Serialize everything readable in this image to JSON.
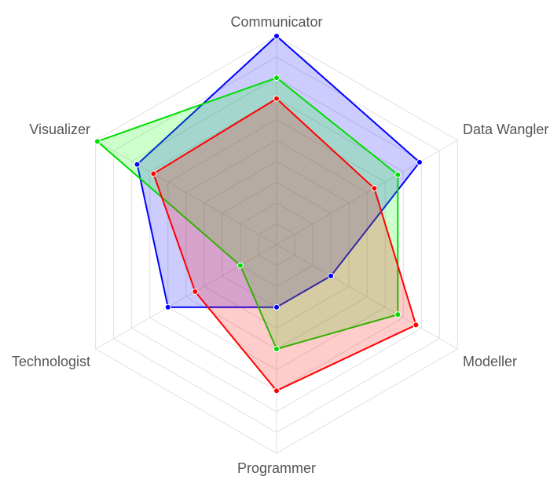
{
  "chart_data": {
    "type": "radar",
    "axes": [
      "Communicator",
      "Data Wangler",
      "Modeller",
      "Programmer",
      "Technologist",
      "Visualizer"
    ],
    "range": [
      0,
      10
    ],
    "grid_levels": 10,
    "grid": true,
    "legend": "none",
    "series": [
      {
        "color": "#0000ff",
        "fill": "rgba(0,0,255,0.2)",
        "values": [
          10,
          7.9,
          3,
          3,
          6,
          7.7
        ]
      },
      {
        "color": "#00dd00",
        "fill": "rgba(0,255,0,0.2)",
        "values": [
          8,
          6.7,
          6.7,
          5,
          2,
          9.9
        ]
      },
      {
        "color": "#ff0000",
        "fill": "rgba(255,0,0,0.2)",
        "values": [
          7,
          5.4,
          7.7,
          7,
          4.5,
          6.8
        ]
      }
    ]
  }
}
